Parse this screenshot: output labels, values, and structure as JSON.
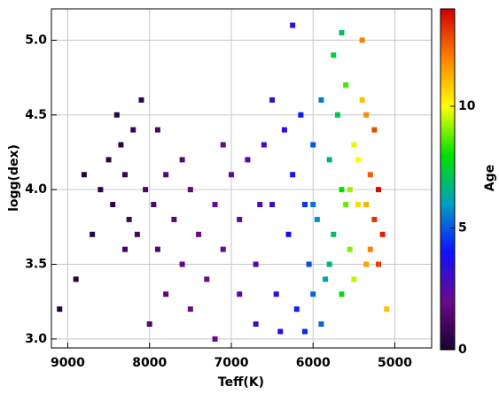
{
  "chart_data": {
    "type": "scatter",
    "x_label": "Teff(K)",
    "y_label": "logg(dex)",
    "color_label": "Age",
    "xlim": [
      9200,
      4550
    ],
    "ylim": [
      2.94,
      5.21
    ],
    "xticks": [
      9000,
      8000,
      7000,
      6000,
      5000
    ],
    "yticks": [
      {
        "value": 3,
        "label": "3.0"
      },
      3.5,
      {
        "value": 4,
        "label": "4.0"
      },
      4.5,
      {
        "value": 5,
        "label": "5.0"
      }
    ],
    "clim": [
      0,
      14
    ],
    "cticks": [
      0,
      5,
      10
    ],
    "colormap": [
      "#1a0030",
      "#6a0a8a",
      "#1010ff",
      "#00a0c0",
      "#00e000",
      "#ffff00",
      "#ff8000",
      "#cc0000"
    ],
    "grid": true,
    "x": [
      8400,
      8350,
      8300,
      8450,
      8250,
      8200,
      8150,
      8500,
      8300,
      8100,
      8050,
      7950,
      7900,
      7800,
      7700,
      7600,
      7500,
      7400,
      7300,
      7200,
      7100,
      7000,
      7800,
      7500,
      7600,
      6900,
      6800,
      6700,
      6600,
      6500,
      6450,
      6700,
      6900,
      6350,
      6300,
      6250,
      6200,
      6150,
      6100,
      6050,
      6000,
      5950,
      5900,
      5850,
      5800,
      5750,
      5700,
      5650,
      5650,
      5600,
      5550,
      5500,
      5450,
      5400,
      5350,
      5300,
      5250,
      5200,
      5250,
      5300,
      5350,
      5450,
      5500,
      5900,
      6100,
      5750,
      5650,
      6250,
      8700,
      8900,
      8600,
      8800,
      9100,
      7200,
      8000,
      6500,
      6000,
      5800,
      5550,
      5150,
      5100,
      5400,
      6400,
      7900,
      7100,
      6650,
      6000,
      5600,
      5350,
      5200
    ],
    "y": [
      4.5,
      4.3,
      4.1,
      3.9,
      3.8,
      4.4,
      3.7,
      4.2,
      3.6,
      4.6,
      4.0,
      3.9,
      3.6,
      4.1,
      3.8,
      3.5,
      4.0,
      3.7,
      3.4,
      3.9,
      3.6,
      4.1,
      3.3,
      3.2,
      4.2,
      3.8,
      4.2,
      3.5,
      4.3,
      3.9,
      3.3,
      3.1,
      3.3,
      4.4,
      3.7,
      4.1,
      3.2,
      4.5,
      3.9,
      3.5,
      4.3,
      3.8,
      4.6,
      3.4,
      4.2,
      3.7,
      4.5,
      3.3,
      4.0,
      4.7,
      3.6,
      4.3,
      3.9,
      4.6,
      3.5,
      4.1,
      3.8,
      4.0,
      4.4,
      3.6,
      4.5,
      4.2,
      3.4,
      3.1,
      3.05,
      4.9,
      5.05,
      5.1,
      3.7,
      3.4,
      4.0,
      4.1,
      3.2,
      3.0,
      3.1,
      4.6,
      3.3,
      3.5,
      4.0,
      3.7,
      3.2,
      5.0,
      3.05,
      4.4,
      4.3,
      3.9,
      3.9,
      3.9,
      3.9,
      3.5
    ],
    "c": [
      0.5,
      0.6,
      0.8,
      0.5,
      0.9,
      0.7,
      1.0,
      0.4,
      1.1,
      0.6,
      1.2,
      1.3,
      1.4,
      1.5,
      1.6,
      1.8,
      1.7,
      1.9,
      2.0,
      2.1,
      2.2,
      2.3,
      1.6,
      1.9,
      1.5,
      2.5,
      2.6,
      2.8,
      2.9,
      3.1,
      3.3,
      2.9,
      2.6,
      3.5,
      3.8,
      3.9,
      4.2,
      4.1,
      4.5,
      4.8,
      5.0,
      5.8,
      5.5,
      6.2,
      6.5,
      7.0,
      7.2,
      7.8,
      8.0,
      8.5,
      9.0,
      9.8,
      10.5,
      11.0,
      11.5,
      12.5,
      13.2,
      13.8,
      12.8,
      12.0,
      11.8,
      10.0,
      9.5,
      5.2,
      4.3,
      7.5,
      7.0,
      3.5,
      0.4,
      0.3,
      0.5,
      0.4,
      0.2,
      2.1,
      1.3,
      3.0,
      5.2,
      6.8,
      9.2,
      13.5,
      11.0,
      12.0,
      3.4,
      1.2,
      2.0,
      2.7,
      5.4,
      8.8,
      11.2,
      13.0
    ]
  }
}
